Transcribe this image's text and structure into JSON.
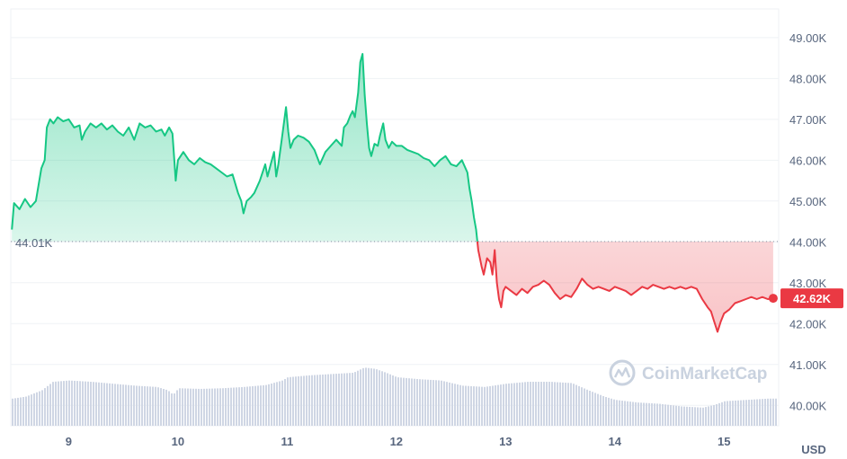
{
  "chart_data": {
    "type": "area",
    "currency_label": "USD",
    "watermark": "CoinMarketCap",
    "reference_price": 44010,
    "reference_label": "44.01K",
    "current_price": 42620,
    "current_label": "42.62K",
    "ylim": [
      39500,
      49700
    ],
    "y_ticks": [
      {
        "v": 40000,
        "label": "40.00K"
      },
      {
        "v": 41000,
        "label": "41.00K"
      },
      {
        "v": 42000,
        "label": "42.00K"
      },
      {
        "v": 43000,
        "label": "43.00K"
      },
      {
        "v": 44000,
        "label": "44.00K"
      },
      {
        "v": 45000,
        "label": "45.00K"
      },
      {
        "v": 46000,
        "label": "46.00K"
      },
      {
        "v": 47000,
        "label": "47.00K"
      },
      {
        "v": 48000,
        "label": "48.00K"
      },
      {
        "v": 49000,
        "label": "49.00K"
      }
    ],
    "xlim": [
      8.47,
      15.5
    ],
    "x_ticks": [
      {
        "v": 9,
        "label": "9"
      },
      {
        "v": 10,
        "label": "10"
      },
      {
        "v": 11,
        "label": "11"
      },
      {
        "v": 12,
        "label": "12"
      },
      {
        "v": 13,
        "label": "13"
      },
      {
        "v": 14,
        "label": "14"
      },
      {
        "v": 15,
        "label": "15"
      }
    ],
    "colors": {
      "up": "#16c784",
      "down": "#ea3943",
      "volume": "#cfd6e4",
      "grid": "#eff2f5"
    },
    "price_series": [
      [
        8.48,
        44300
      ],
      [
        8.5,
        44950
      ],
      [
        8.55,
        44800
      ],
      [
        8.6,
        45050
      ],
      [
        8.65,
        44850
      ],
      [
        8.7,
        45000
      ],
      [
        8.75,
        45800
      ],
      [
        8.78,
        46000
      ],
      [
        8.8,
        46800
      ],
      [
        8.83,
        47000
      ],
      [
        8.86,
        46900
      ],
      [
        8.9,
        47050
      ],
      [
        8.95,
        46950
      ],
      [
        9.0,
        47000
      ],
      [
        9.05,
        46800
      ],
      [
        9.1,
        46850
      ],
      [
        9.12,
        46500
      ],
      [
        9.15,
        46700
      ],
      [
        9.2,
        46900
      ],
      [
        9.25,
        46800
      ],
      [
        9.3,
        46900
      ],
      [
        9.35,
        46750
      ],
      [
        9.4,
        46850
      ],
      [
        9.45,
        46700
      ],
      [
        9.5,
        46600
      ],
      [
        9.55,
        46800
      ],
      [
        9.6,
        46500
      ],
      [
        9.65,
        46900
      ],
      [
        9.7,
        46800
      ],
      [
        9.75,
        46850
      ],
      [
        9.8,
        46700
      ],
      [
        9.85,
        46750
      ],
      [
        9.88,
        46600
      ],
      [
        9.92,
        46800
      ],
      [
        9.95,
        46650
      ],
      [
        9.97,
        45900
      ],
      [
        9.98,
        45500
      ],
      [
        10.0,
        46000
      ],
      [
        10.05,
        46200
      ],
      [
        10.1,
        46000
      ],
      [
        10.15,
        45900
      ],
      [
        10.2,
        46050
      ],
      [
        10.25,
        45950
      ],
      [
        10.3,
        45900
      ],
      [
        10.35,
        45800
      ],
      [
        10.4,
        45700
      ],
      [
        10.45,
        45600
      ],
      [
        10.5,
        45650
      ],
      [
        10.55,
        45200
      ],
      [
        10.58,
        45000
      ],
      [
        10.6,
        44700
      ],
      [
        10.63,
        45000
      ],
      [
        10.67,
        45100
      ],
      [
        10.7,
        45200
      ],
      [
        10.75,
        45500
      ],
      [
        10.8,
        45900
      ],
      [
        10.82,
        45600
      ],
      [
        10.85,
        45900
      ],
      [
        10.88,
        46200
      ],
      [
        10.9,
        45600
      ],
      [
        10.92,
        45900
      ],
      [
        10.95,
        46500
      ],
      [
        10.97,
        46900
      ],
      [
        10.99,
        47300
      ],
      [
        11.01,
        46700
      ],
      [
        11.03,
        46300
      ],
      [
        11.06,
        46500
      ],
      [
        11.1,
        46600
      ],
      [
        11.15,
        46550
      ],
      [
        11.2,
        46450
      ],
      [
        11.25,
        46250
      ],
      [
        11.3,
        45900
      ],
      [
        11.35,
        46200
      ],
      [
        11.4,
        46350
      ],
      [
        11.45,
        46500
      ],
      [
        11.5,
        46350
      ],
      [
        11.52,
        46800
      ],
      [
        11.55,
        46900
      ],
      [
        11.58,
        47100
      ],
      [
        11.6,
        47200
      ],
      [
        11.62,
        47050
      ],
      [
        11.65,
        47650
      ],
      [
        11.67,
        48400
      ],
      [
        11.69,
        48600
      ],
      [
        11.71,
        47600
      ],
      [
        11.73,
        46900
      ],
      [
        11.75,
        46300
      ],
      [
        11.77,
        46100
      ],
      [
        11.8,
        46400
      ],
      [
        11.83,
        46350
      ],
      [
        11.85,
        46600
      ],
      [
        11.88,
        46900
      ],
      [
        11.9,
        46500
      ],
      [
        11.93,
        46300
      ],
      [
        11.96,
        46450
      ],
      [
        12.0,
        46350
      ],
      [
        12.05,
        46350
      ],
      [
        12.1,
        46250
      ],
      [
        12.15,
        46200
      ],
      [
        12.2,
        46150
      ],
      [
        12.25,
        46050
      ],
      [
        12.3,
        46000
      ],
      [
        12.35,
        45850
      ],
      [
        12.4,
        46000
      ],
      [
        12.45,
        46100
      ],
      [
        12.5,
        45900
      ],
      [
        12.55,
        45850
      ],
      [
        12.6,
        46000
      ],
      [
        12.65,
        45700
      ],
      [
        12.67,
        45300
      ],
      [
        12.69,
        45000
      ],
      [
        12.71,
        44600
      ],
      [
        12.73,
        44300
      ],
      [
        12.75,
        43800
      ],
      [
        12.78,
        43400
      ],
      [
        12.8,
        43200
      ],
      [
        12.83,
        43600
      ],
      [
        12.86,
        43500
      ],
      [
        12.88,
        43200
      ],
      [
        12.9,
        43800
      ],
      [
        12.92,
        43000
      ],
      [
        12.94,
        42600
      ],
      [
        12.96,
        42400
      ],
      [
        12.98,
        42800
      ],
      [
        13.0,
        42900
      ],
      [
        13.05,
        42800
      ],
      [
        13.1,
        42700
      ],
      [
        13.15,
        42850
      ],
      [
        13.2,
        42750
      ],
      [
        13.25,
        42900
      ],
      [
        13.3,
        42950
      ],
      [
        13.35,
        43050
      ],
      [
        13.4,
        42950
      ],
      [
        13.45,
        42750
      ],
      [
        13.5,
        42600
      ],
      [
        13.55,
        42700
      ],
      [
        13.6,
        42650
      ],
      [
        13.65,
        42850
      ],
      [
        13.7,
        43100
      ],
      [
        13.75,
        42950
      ],
      [
        13.8,
        42850
      ],
      [
        13.85,
        42900
      ],
      [
        13.9,
        42850
      ],
      [
        13.95,
        42800
      ],
      [
        14.0,
        42900
      ],
      [
        14.05,
        42850
      ],
      [
        14.1,
        42800
      ],
      [
        14.15,
        42700
      ],
      [
        14.2,
        42800
      ],
      [
        14.25,
        42900
      ],
      [
        14.3,
        42850
      ],
      [
        14.35,
        42950
      ],
      [
        14.4,
        42900
      ],
      [
        14.45,
        42850
      ],
      [
        14.5,
        42900
      ],
      [
        14.55,
        42850
      ],
      [
        14.6,
        42900
      ],
      [
        14.65,
        42850
      ],
      [
        14.7,
        42900
      ],
      [
        14.75,
        42850
      ],
      [
        14.8,
        42600
      ],
      [
        14.85,
        42400
      ],
      [
        14.88,
        42300
      ],
      [
        14.91,
        42050
      ],
      [
        14.94,
        41800
      ],
      [
        14.97,
        42050
      ],
      [
        15.0,
        42250
      ],
      [
        15.05,
        42350
      ],
      [
        15.1,
        42500
      ],
      [
        15.15,
        42550
      ],
      [
        15.2,
        42600
      ],
      [
        15.25,
        42650
      ],
      [
        15.3,
        42600
      ],
      [
        15.35,
        42650
      ],
      [
        15.4,
        42600
      ],
      [
        15.45,
        42620
      ]
    ],
    "volume_series": [
      [
        8.48,
        0.42
      ],
      [
        8.6,
        0.45
      ],
      [
        8.75,
        0.55
      ],
      [
        8.85,
        0.68
      ],
      [
        9.0,
        0.7
      ],
      [
        9.2,
        0.68
      ],
      [
        9.4,
        0.65
      ],
      [
        9.6,
        0.62
      ],
      [
        9.8,
        0.6
      ],
      [
        9.9,
        0.55
      ],
      [
        9.95,
        0.48
      ],
      [
        10.0,
        0.58
      ],
      [
        10.2,
        0.57
      ],
      [
        10.4,
        0.58
      ],
      [
        10.6,
        0.6
      ],
      [
        10.8,
        0.63
      ],
      [
        10.95,
        0.7
      ],
      [
        11.0,
        0.75
      ],
      [
        11.2,
        0.78
      ],
      [
        11.4,
        0.8
      ],
      [
        11.6,
        0.82
      ],
      [
        11.7,
        0.9
      ],
      [
        11.8,
        0.88
      ],
      [
        11.9,
        0.82
      ],
      [
        12.0,
        0.75
      ],
      [
        12.2,
        0.72
      ],
      [
        12.4,
        0.7
      ],
      [
        12.6,
        0.62
      ],
      [
        12.8,
        0.6
      ],
      [
        13.0,
        0.65
      ],
      [
        13.2,
        0.68
      ],
      [
        13.4,
        0.68
      ],
      [
        13.6,
        0.66
      ],
      [
        13.75,
        0.55
      ],
      [
        13.9,
        0.45
      ],
      [
        14.0,
        0.4
      ],
      [
        14.2,
        0.36
      ],
      [
        14.4,
        0.34
      ],
      [
        14.6,
        0.3
      ],
      [
        14.8,
        0.28
      ],
      [
        14.9,
        0.32
      ],
      [
        15.0,
        0.38
      ],
      [
        15.2,
        0.4
      ],
      [
        15.4,
        0.42
      ]
    ]
  }
}
